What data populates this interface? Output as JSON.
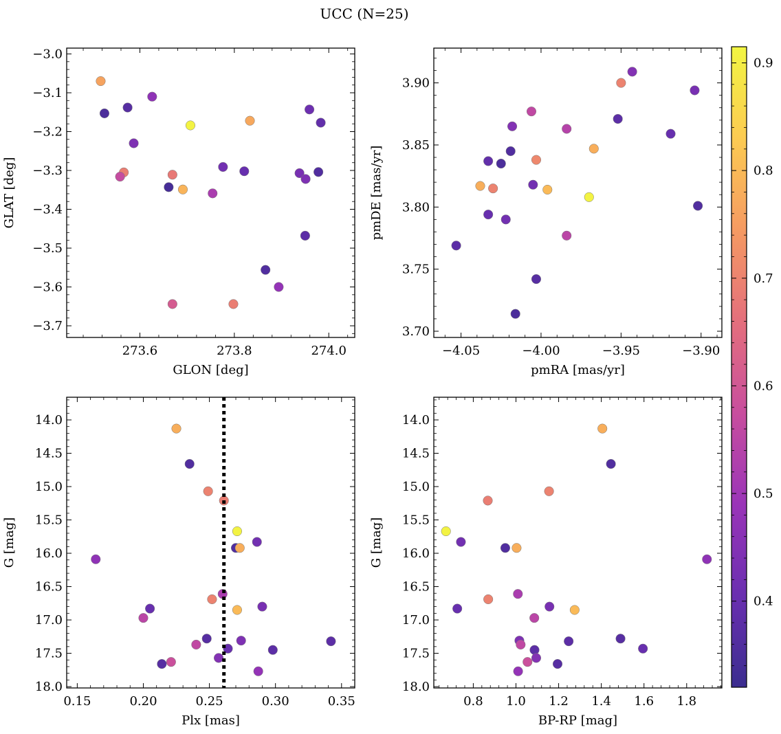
{
  "figure": {
    "title": "UCC (N=25)"
  },
  "colorbar": {
    "range": [
      0.32,
      0.915
    ],
    "ticks": [
      0.4,
      0.5,
      0.6,
      0.7,
      0.8,
      0.9
    ],
    "tick_labels": [
      "0.4",
      "0.5",
      "0.6",
      "0.7",
      "0.8",
      "0.9"
    ],
    "colormap": "plasma",
    "colors": [
      "#3b2d8f",
      "#6a2fb0",
      "#9a34b8",
      "#c84e9e",
      "#e46f7c",
      "#f59a62",
      "#fccb52",
      "#f2f542"
    ]
  },
  "chart_data": [
    {
      "type": "scatter",
      "xlabel": "GLON [deg]",
      "ylabel": "GLAT [deg]",
      "xlim": [
        273.445,
        274.055
      ],
      "ylim": [
        -3.73,
        -2.985
      ],
      "y_inverted": false,
      "xticks": [
        273.6,
        273.8,
        274.0
      ],
      "xtick_labels": [
        "273.6",
        "273.8",
        "274.0"
      ],
      "yticks": [
        -3.7,
        -3.6,
        -3.5,
        -3.4,
        -3.3,
        -3.2,
        -3.1,
        -3.0
      ],
      "ytick_labels": [
        "−3.7",
        "−3.6",
        "−3.5",
        "−3.4",
        "−3.3",
        "−3.2",
        "−3.1",
        "−3.0"
      ],
      "points": [
        {
          "x": 273.517,
          "y": -3.07,
          "c": 0.76
        },
        {
          "x": 273.525,
          "y": -3.153,
          "c": 0.35
        },
        {
          "x": 273.574,
          "y": -3.138,
          "c": 0.37
        },
        {
          "x": 273.626,
          "y": -3.11,
          "c": 0.47
        },
        {
          "x": 273.587,
          "y": -3.23,
          "c": 0.44
        },
        {
          "x": 273.707,
          "y": -3.184,
          "c": 0.91
        },
        {
          "x": 273.833,
          "y": -3.172,
          "c": 0.77
        },
        {
          "x": 273.959,
          "y": -3.143,
          "c": 0.41
        },
        {
          "x": 273.983,
          "y": -3.177,
          "c": 0.39
        },
        {
          "x": 273.566,
          "y": -3.305,
          "c": 0.69
        },
        {
          "x": 273.558,
          "y": -3.316,
          "c": 0.57
        },
        {
          "x": 273.669,
          "y": -3.311,
          "c": 0.68
        },
        {
          "x": 273.661,
          "y": -3.343,
          "c": 0.34
        },
        {
          "x": 273.691,
          "y": -3.349,
          "c": 0.79
        },
        {
          "x": 273.776,
          "y": -3.291,
          "c": 0.42
        },
        {
          "x": 273.821,
          "y": -3.302,
          "c": 0.4
        },
        {
          "x": 273.754,
          "y": -3.359,
          "c": 0.52
        },
        {
          "x": 273.938,
          "y": -3.307,
          "c": 0.43
        },
        {
          "x": 273.951,
          "y": -3.322,
          "c": 0.44
        },
        {
          "x": 273.978,
          "y": -3.304,
          "c": 0.36
        },
        {
          "x": 273.95,
          "y": -3.468,
          "c": 0.38
        },
        {
          "x": 273.866,
          "y": -3.556,
          "c": 0.36
        },
        {
          "x": 273.894,
          "y": -3.6,
          "c": 0.48
        },
        {
          "x": 273.669,
          "y": -3.644,
          "c": 0.61
        },
        {
          "x": 273.798,
          "y": -3.644,
          "c": 0.69
        }
      ]
    },
    {
      "type": "scatter",
      "xlabel": "pmRA [mas/yr]",
      "ylabel": "pmDE [mas/yr]",
      "xlim": [
        -4.067,
        -3.887
      ],
      "ylim": [
        3.695,
        3.928
      ],
      "y_inverted": false,
      "xticks": [
        -4.05,
        -4.0,
        -3.95,
        -3.9
      ],
      "xtick_labels": [
        "−4.05",
        "−4.00",
        "−3.95",
        "−3.90"
      ],
      "yticks": [
        3.7,
        3.75,
        3.8,
        3.85,
        3.9
      ],
      "ytick_labels": [
        "3.70",
        "3.75",
        "3.80",
        "3.85",
        "3.90"
      ],
      "points": [
        {
          "x": -3.943,
          "y": 3.909,
          "c": 0.45
        },
        {
          "x": -3.95,
          "y": 3.9,
          "c": 0.7
        },
        {
          "x": -3.904,
          "y": 3.894,
          "c": 0.43
        },
        {
          "x": -4.006,
          "y": 3.877,
          "c": 0.56
        },
        {
          "x": -3.952,
          "y": 3.871,
          "c": 0.38
        },
        {
          "x": -4.018,
          "y": 3.865,
          "c": 0.45
        },
        {
          "x": -3.984,
          "y": 3.863,
          "c": 0.54
        },
        {
          "x": -3.919,
          "y": 3.859,
          "c": 0.4
        },
        {
          "x": -3.967,
          "y": 3.847,
          "c": 0.78
        },
        {
          "x": -4.019,
          "y": 3.845,
          "c": 0.36
        },
        {
          "x": -4.003,
          "y": 3.838,
          "c": 0.71
        },
        {
          "x": -4.033,
          "y": 3.837,
          "c": 0.39
        },
        {
          "x": -4.025,
          "y": 3.835,
          "c": 0.35
        },
        {
          "x": -4.038,
          "y": 3.817,
          "c": 0.78
        },
        {
          "x": -4.03,
          "y": 3.815,
          "c": 0.7
        },
        {
          "x": -4.005,
          "y": 3.818,
          "c": 0.42
        },
        {
          "x": -3.996,
          "y": 3.814,
          "c": 0.8
        },
        {
          "x": -3.97,
          "y": 3.808,
          "c": 0.91
        },
        {
          "x": -3.902,
          "y": 3.801,
          "c": 0.36
        },
        {
          "x": -4.033,
          "y": 3.794,
          "c": 0.4
        },
        {
          "x": -4.022,
          "y": 3.79,
          "c": 0.42
        },
        {
          "x": -3.984,
          "y": 3.777,
          "c": 0.55
        },
        {
          "x": -4.053,
          "y": 3.769,
          "c": 0.38
        },
        {
          "x": -4.003,
          "y": 3.742,
          "c": 0.37
        },
        {
          "x": -4.016,
          "y": 3.714,
          "c": 0.35
        }
      ]
    },
    {
      "type": "scatter",
      "xlabel": "Plx [mas]",
      "ylabel": "G [mag]",
      "xlim": [
        0.142,
        0.36
      ],
      "ylim": [
        18.02,
        13.66
      ],
      "y_inverted": true,
      "xticks": [
        0.15,
        0.2,
        0.25,
        0.3,
        0.35
      ],
      "xtick_labels": [
        "0.15",
        "0.20",
        "0.25",
        "0.30",
        "0.35"
      ],
      "yticks": [
        14.0,
        14.5,
        15.0,
        15.5,
        16.0,
        16.5,
        17.0,
        17.5,
        18.0
      ],
      "ytick_labels": [
        "14.0",
        "14.5",
        "15.0",
        "15.5",
        "16.0",
        "16.5",
        "17.0",
        "17.5",
        "18.0"
      ],
      "vline": {
        "x": 0.261,
        "style": "dotted"
      },
      "points": [
        {
          "x": 0.225,
          "y": 14.13,
          "c": 0.78
        },
        {
          "x": 0.235,
          "y": 14.66,
          "c": 0.36
        },
        {
          "x": 0.249,
          "y": 15.07,
          "c": 0.7
        },
        {
          "x": 0.261,
          "y": 15.21,
          "c": 0.69
        },
        {
          "x": 0.271,
          "y": 15.67,
          "c": 0.91
        },
        {
          "x": 0.286,
          "y": 15.83,
          "c": 0.42
        },
        {
          "x": 0.27,
          "y": 15.92,
          "c": 0.36
        },
        {
          "x": 0.273,
          "y": 15.92,
          "c": 0.78
        },
        {
          "x": 0.164,
          "y": 16.09,
          "c": 0.47
        },
        {
          "x": 0.26,
          "y": 16.61,
          "c": 0.52
        },
        {
          "x": 0.252,
          "y": 16.69,
          "c": 0.7
        },
        {
          "x": 0.271,
          "y": 16.85,
          "c": 0.8
        },
        {
          "x": 0.205,
          "y": 16.83,
          "c": 0.4
        },
        {
          "x": 0.29,
          "y": 16.8,
          "c": 0.43
        },
        {
          "x": 0.2,
          "y": 16.97,
          "c": 0.55
        },
        {
          "x": 0.248,
          "y": 17.28,
          "c": 0.37
        },
        {
          "x": 0.274,
          "y": 17.31,
          "c": 0.44
        },
        {
          "x": 0.342,
          "y": 17.32,
          "c": 0.38
        },
        {
          "x": 0.24,
          "y": 17.37,
          "c": 0.56
        },
        {
          "x": 0.264,
          "y": 17.43,
          "c": 0.4
        },
        {
          "x": 0.298,
          "y": 17.45,
          "c": 0.38
        },
        {
          "x": 0.257,
          "y": 17.57,
          "c": 0.45
        },
        {
          "x": 0.221,
          "y": 17.63,
          "c": 0.58
        },
        {
          "x": 0.214,
          "y": 17.66,
          "c": 0.37
        },
        {
          "x": 0.287,
          "y": 17.77,
          "c": 0.48
        }
      ]
    },
    {
      "type": "scatter",
      "xlabel": "BP-RP [mag]",
      "ylabel": "G [mag]",
      "xlim": [
        0.615,
        1.965
      ],
      "ylim": [
        18.02,
        13.66
      ],
      "y_inverted": true,
      "xticks": [
        0.8,
        1.0,
        1.2,
        1.4,
        1.6,
        1.8
      ],
      "xtick_labels": [
        "0.8",
        "1.0",
        "1.2",
        "1.4",
        "1.6",
        "1.8"
      ],
      "yticks": [
        14.0,
        14.5,
        15.0,
        15.5,
        16.0,
        16.5,
        17.0,
        17.5,
        18.0
      ],
      "ytick_labels": [
        "14.0",
        "14.5",
        "15.0",
        "15.5",
        "16.0",
        "16.5",
        "17.0",
        "17.5",
        "18.0"
      ],
      "points": [
        {
          "x": 1.405,
          "y": 14.13,
          "c": 0.78
        },
        {
          "x": 1.445,
          "y": 14.66,
          "c": 0.36
        },
        {
          "x": 1.155,
          "y": 15.07,
          "c": 0.7
        },
        {
          "x": 0.868,
          "y": 15.21,
          "c": 0.69
        },
        {
          "x": 0.672,
          "y": 15.67,
          "c": 0.91
        },
        {
          "x": 0.742,
          "y": 15.83,
          "c": 0.42
        },
        {
          "x": 0.95,
          "y": 15.92,
          "c": 0.36
        },
        {
          "x": 1.003,
          "y": 15.92,
          "c": 0.78
        },
        {
          "x": 1.895,
          "y": 16.09,
          "c": 0.47
        },
        {
          "x": 1.009,
          "y": 16.61,
          "c": 0.52
        },
        {
          "x": 0.87,
          "y": 16.69,
          "c": 0.7
        },
        {
          "x": 1.275,
          "y": 16.85,
          "c": 0.8
        },
        {
          "x": 0.725,
          "y": 16.83,
          "c": 0.4
        },
        {
          "x": 1.157,
          "y": 16.8,
          "c": 0.43
        },
        {
          "x": 1.086,
          "y": 16.97,
          "c": 0.55
        },
        {
          "x": 1.49,
          "y": 17.28,
          "c": 0.37
        },
        {
          "x": 1.016,
          "y": 17.31,
          "c": 0.44
        },
        {
          "x": 1.247,
          "y": 17.32,
          "c": 0.38
        },
        {
          "x": 1.022,
          "y": 17.37,
          "c": 0.56
        },
        {
          "x": 1.595,
          "y": 17.43,
          "c": 0.4
        },
        {
          "x": 1.087,
          "y": 17.45,
          "c": 0.38
        },
        {
          "x": 1.095,
          "y": 17.57,
          "c": 0.45
        },
        {
          "x": 1.054,
          "y": 17.63,
          "c": 0.58
        },
        {
          "x": 1.195,
          "y": 17.66,
          "c": 0.37
        },
        {
          "x": 1.01,
          "y": 17.77,
          "c": 0.48
        }
      ]
    }
  ]
}
